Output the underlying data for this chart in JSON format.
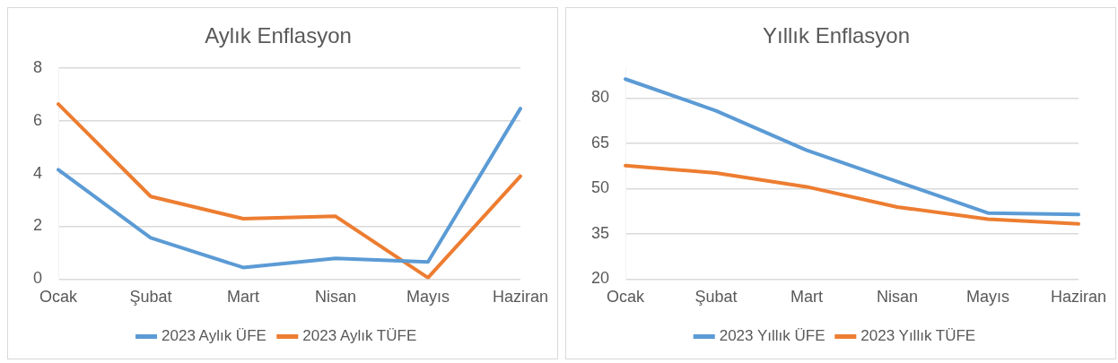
{
  "chart_data": [
    {
      "type": "line",
      "title": "Aylık Enflasyon",
      "categories": [
        "Ocak",
        "Şubat",
        "Mart",
        "Nisan",
        "Mayıs",
        "Haziran"
      ],
      "series": [
        {
          "name": "2023 Aylık ÜFE",
          "color": "#5b9bd5",
          "values": [
            4.14,
            1.56,
            0.44,
            0.79,
            0.65,
            6.46
          ]
        },
        {
          "name": "2023 Aylık TÜFE",
          "color": "#ed7d31",
          "values": [
            6.63,
            3.13,
            2.29,
            2.38,
            0.05,
            3.9
          ]
        }
      ],
      "ylim": [
        0,
        8
      ],
      "yticks": [
        0,
        2,
        4,
        6,
        8
      ],
      "grid": "y",
      "legend": "bottom",
      "marker": "none",
      "line_style": "solid"
    },
    {
      "type": "line",
      "title": "Yıllık Enflasyon",
      "categories": [
        "Ocak",
        "Şubat",
        "Mart",
        "Nisan",
        "Mayıs",
        "Haziran"
      ],
      "series": [
        {
          "name": "2023 Yıllık ÜFE",
          "color": "#5b9bd5",
          "values": [
            86.3,
            75.8,
            62.7,
            52.3,
            41.9,
            41.4
          ]
        },
        {
          "name": "2023 Yıllık TÜFE",
          "color": "#ed7d31",
          "values": [
            57.6,
            55.2,
            50.6,
            43.9,
            39.9,
            38.3
          ]
        }
      ],
      "ylim": [
        20,
        90
      ],
      "yticks": [
        20,
        35,
        50,
        65,
        80
      ],
      "grid": "y",
      "legend": "bottom",
      "marker": "none",
      "line_style": "solid"
    }
  ]
}
